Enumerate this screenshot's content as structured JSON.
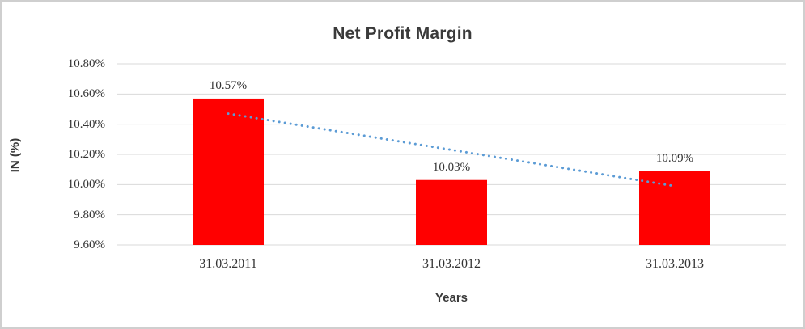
{
  "window": {
    "background": "#ffffff",
    "border_color": "#cfcfcf"
  },
  "chart_data": {
    "type": "bar",
    "title": "Net Profit Margin",
    "xlabel": "Years",
    "ylabel": "IN (%)",
    "categories": [
      "31.03.2011",
      "31.03.2012",
      "31.03.2013"
    ],
    "values": [
      10.57,
      10.03,
      10.09
    ],
    "value_labels": [
      "10.57%",
      "10.03%",
      "10.09%"
    ],
    "ylim": [
      9.6,
      10.8
    ],
    "y_tick_step": 0.2,
    "y_tick_labels": [
      "10.80%",
      "10.60%",
      "10.40%",
      "10.20%",
      "10.00%",
      "9.80%",
      "9.60%"
    ],
    "grid": true,
    "legend": "none",
    "bar_color": "#ff0000",
    "gridline_color": "#d9d9d9",
    "trendline": {
      "type": "linear",
      "style": "dotted",
      "color": "#5b9bd5",
      "y_start": 10.47,
      "y_end": 9.99
    }
  }
}
